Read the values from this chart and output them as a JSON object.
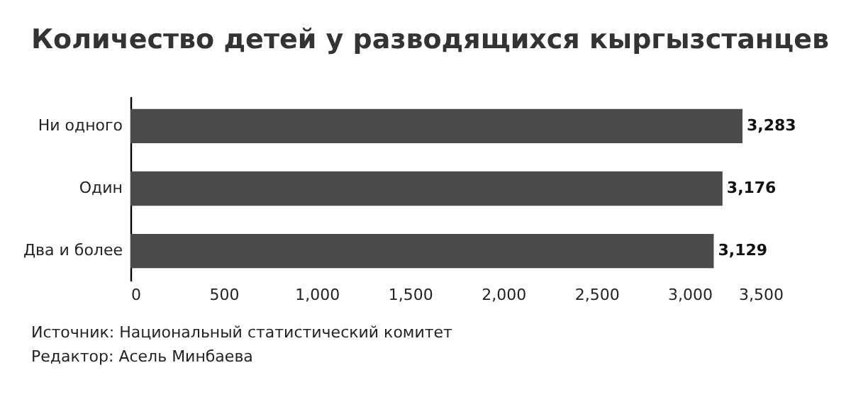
{
  "chart_data": {
    "type": "bar",
    "orientation": "horizontal",
    "title": "Количество детей у разводящихся кыргызстанцев",
    "categories": [
      "Ни одного",
      "Один",
      "Два и более"
    ],
    "values": [
      3283,
      3176,
      3129
    ],
    "value_labels": [
      "3,283",
      "3,176",
      "3,129"
    ],
    "color": "#4a4a4a",
    "xlim": [
      0,
      3500
    ],
    "xticks": [
      0,
      {
        "value": 500,
        "label": "500"
      },
      {
        "value": 1000,
        "label": "1,000"
      },
      {
        "value": 1500,
        "label": "1,500"
      },
      {
        "value": 2000,
        "label": "2,000"
      },
      {
        "value": 2500,
        "label": "2,500"
      },
      {
        "value": 3000,
        "label": "3,000"
      },
      {
        "value": 3500,
        "label": "3,500"
      }
    ],
    "annotations": [
      "Источник: Национальный статистический комитет",
      "Редактор: Асель Минбаева"
    ]
  }
}
